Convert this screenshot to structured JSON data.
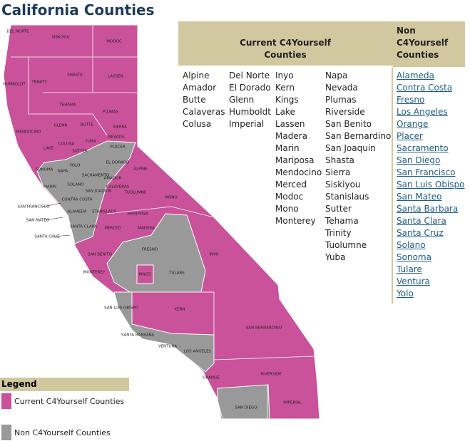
{
  "title": "California Counties",
  "table": {
    "headers": [
      "Current C4Yourself Counties",
      "Non C4Yourself Counties"
    ],
    "current_columns": [
      [
        "Alpine",
        "Amador",
        "Butte",
        "Calaveras",
        "Colusa"
      ],
      [
        "Del Norte",
        "El Dorado",
        "Glenn",
        "Humboldt",
        "Imperial"
      ],
      [
        "Inyo",
        "Kern",
        "Kings",
        "Lake",
        "Lassen",
        "Madera",
        "Marin",
        "Mariposa",
        "Mendocino",
        "Merced",
        "Modoc",
        "Mono",
        "Monterey"
      ],
      [
        "Napa",
        "Nevada",
        "Plumas",
        "Riverside",
        "San Benito",
        "San Bernardino",
        "San Joaquin",
        "Shasta",
        "Sierra",
        "Siskiyou",
        "Stanislaus",
        "Sutter",
        "Tehama",
        "Trinity",
        "Tuolumne",
        "Yuba"
      ]
    ],
    "non_current": [
      "Alameda",
      "Contra Costa",
      "Fresno",
      "Los Angeles",
      "Orange",
      "Placer",
      "Sacramento",
      "San Diego",
      "San Francisco",
      "San Luis Obispo",
      "San Mateo",
      "Santa Barbara",
      "Santa Clara",
      "Santa Cruz",
      "Solano",
      "Sonoma",
      "Tulare",
      "Ventura",
      "Yolo"
    ]
  },
  "legend": {
    "title": "Legend",
    "items": [
      {
        "label": "Current C4Yourself Counties",
        "color": "#c9529a"
      },
      {
        "label": "Non C4Yourself Counties",
        "color": "#999999"
      }
    ]
  },
  "map_labels": [
    "DEL NORTE",
    "SISKIYOU",
    "MODOC",
    "HUMBOLDT",
    "TRINITY",
    "SHASTA",
    "LASSEN",
    "TEHAMA",
    "PLUMAS",
    "GLENN",
    "BUTTE",
    "SIERRA",
    "MENDOCINO",
    "NEVADA",
    "COLUSA",
    "YUBA",
    "SUTTER",
    "PLACER",
    "LAKE",
    "SONOMA",
    "NAPA",
    "YOLO",
    "SACRAMENTO",
    "EL DORADO",
    "ALPINE",
    "AMADOR",
    "SOLANO",
    "MARIN",
    "CALAVERAS",
    "SAN JOAQUIN",
    "TUOLUMNE",
    "MONO",
    "CONTRA COSTA",
    "ALAMEDA",
    "STANISLAUS",
    "SANTA CLARA",
    "MARIPOSA",
    "SAN FRANCISCO",
    "SAN MATEO",
    "SANTA CRUZ",
    "MERCED",
    "MADERA",
    "SAN BENITO",
    "FRESNO",
    "INYO",
    "MONTEREY",
    "KINGS",
    "TULARE",
    "SAN LUIS OBISPO",
    "KERN",
    "SANTA BARBARA",
    "VENTURA",
    "LOS ANGELES",
    "SAN BERNARDINO",
    "ORANGE",
    "RIVERSIDE",
    "SAN DIEGO",
    "IMPERIAL"
  ]
}
